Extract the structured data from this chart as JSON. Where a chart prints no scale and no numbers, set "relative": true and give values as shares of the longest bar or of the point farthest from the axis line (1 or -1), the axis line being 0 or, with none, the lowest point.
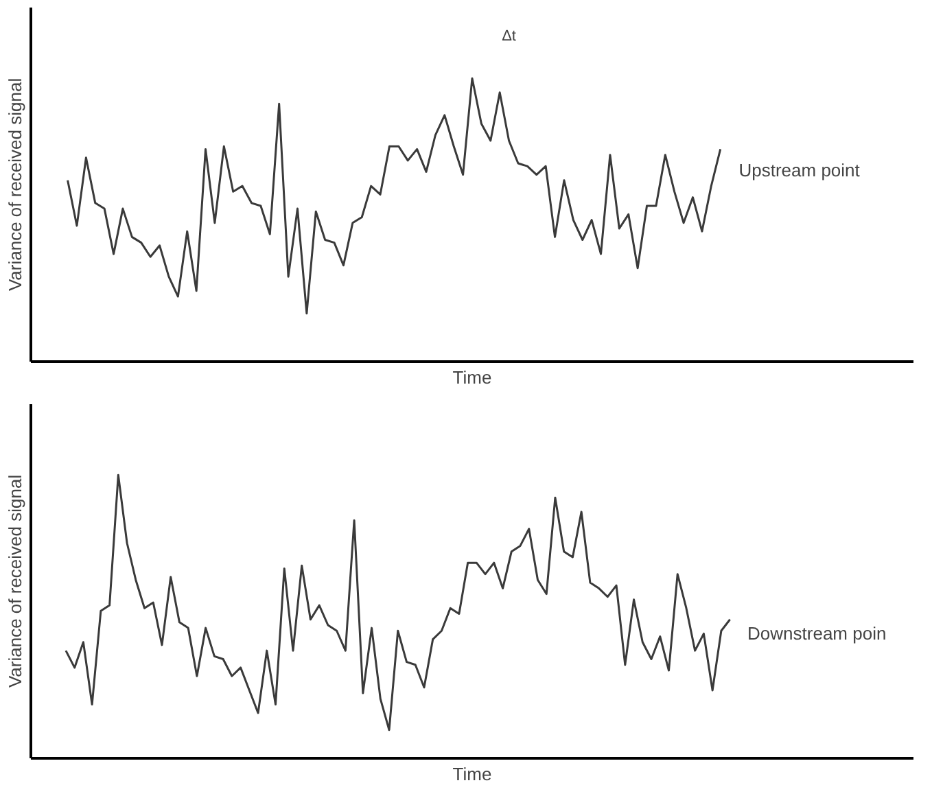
{
  "chart_data": [
    {
      "type": "line",
      "relative": true,
      "ylabel": "Variance of received signal",
      "xlabel": "Time",
      "legend": false,
      "marker": "none",
      "line_style": "solid",
      "annotations": [
        "Δt"
      ],
      "categories": [
        null,
        null,
        null,
        null,
        null,
        null,
        null,
        null,
        null,
        null,
        null,
        null,
        null,
        null,
        null,
        null,
        null,
        null,
        null,
        null,
        null,
        null,
        null,
        null,
        null,
        null,
        null,
        null,
        null,
        null,
        null,
        null,
        null,
        null,
        null,
        null,
        null,
        null,
        null,
        null,
        null,
        null,
        null,
        null,
        null,
        null,
        null,
        null,
        null,
        null,
        null,
        null,
        null,
        null,
        null,
        null,
        null,
        null,
        null,
        null,
        null,
        null,
        null,
        null,
        null,
        null,
        null,
        null,
        null,
        null,
        null,
        null
      ],
      "series": [
        {
          "name": "Upstream point",
          "color": "#3a3a3a",
          "values": [
            0.64,
            0.48,
            0.72,
            0.56,
            0.54,
            0.38,
            0.54,
            0.44,
            0.42,
            0.37,
            0.41,
            0.3,
            0.23,
            0.46,
            0.25,
            0.75,
            0.49,
            0.76,
            0.6,
            0.62,
            0.56,
            0.55,
            0.45,
            0.91,
            0.3,
            0.54,
            0.17,
            0.53,
            0.43,
            0.42,
            0.34,
            0.49,
            0.51,
            0.62,
            0.59,
            0.76,
            0.76,
            0.71,
            0.75,
            0.67,
            0.8,
            0.87,
            0.76,
            0.66,
            1.0,
            0.84,
            0.78,
            0.95,
            0.78,
            0.7,
            0.69,
            0.66,
            0.69,
            0.44,
            0.64,
            0.5,
            0.43,
            0.5,
            0.38,
            0.73,
            0.47,
            0.52,
            0.33,
            0.55,
            0.55,
            0.73,
            0.6,
            0.49,
            0.58,
            0.46,
            0.62,
            0.75
          ]
        }
      ]
    },
    {
      "type": "line",
      "relative": true,
      "ylabel": "Variance of received signal",
      "xlabel": "Time",
      "legend": false,
      "marker": "none",
      "line_style": "solid",
      "categories": [
        null,
        null,
        null,
        null,
        null,
        null,
        null,
        null,
        null,
        null,
        null,
        null,
        null,
        null,
        null,
        null,
        null,
        null,
        null,
        null,
        null,
        null,
        null,
        null,
        null,
        null,
        null,
        null,
        null,
        null,
        null,
        null,
        null,
        null,
        null,
        null,
        null,
        null,
        null,
        null,
        null,
        null,
        null,
        null,
        null,
        null,
        null,
        null,
        null,
        null,
        null,
        null,
        null,
        null,
        null,
        null,
        null,
        null,
        null,
        null,
        null,
        null,
        null,
        null,
        null,
        null,
        null,
        null,
        null,
        null,
        null,
        null,
        null,
        null,
        null,
        null,
        null
      ],
      "series": [
        {
          "name": "Downstream poin",
          "color": "#3a3a3a",
          "values": [
            0.38,
            0.32,
            0.41,
            0.19,
            0.52,
            0.54,
            1.0,
            0.76,
            0.63,
            0.53,
            0.55,
            0.4,
            0.64,
            0.48,
            0.46,
            0.29,
            0.46,
            0.36,
            0.35,
            0.29,
            0.32,
            0.24,
            0.16,
            0.38,
            0.19,
            0.67,
            0.38,
            0.68,
            0.49,
            0.54,
            0.47,
            0.45,
            0.38,
            0.84,
            0.23,
            0.46,
            0.21,
            0.1,
            0.45,
            0.34,
            0.33,
            0.25,
            0.42,
            0.45,
            0.53,
            0.51,
            0.69,
            0.69,
            0.65,
            0.69,
            0.6,
            0.73,
            0.75,
            0.81,
            0.63,
            0.58,
            0.92,
            0.73,
            0.71,
            0.87,
            0.62,
            0.6,
            0.57,
            0.61,
            0.33,
            0.56,
            0.41,
            0.35,
            0.43,
            0.31,
            0.65,
            0.53,
            0.38,
            0.44,
            0.24,
            0.45,
            0.49
          ]
        }
      ]
    }
  ]
}
